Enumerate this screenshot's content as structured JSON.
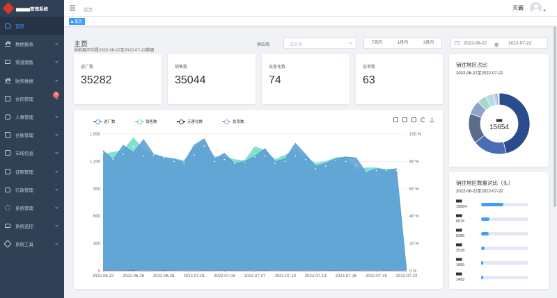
{
  "app": {
    "title": "▅▅▅▅管理系统"
  },
  "sidebar": {
    "items": [
      {
        "label": "首页",
        "icon": "home-icon",
        "active": true
      },
      {
        "label": "数据报表",
        "icon": "bar-chart-icon"
      },
      {
        "label": "渠道销售",
        "icon": "monitor-icon"
      },
      {
        "label": "财务数据",
        "icon": "bar-chart-icon"
      },
      {
        "label": "合同管理",
        "icon": "document-icon",
        "badge": "3"
      },
      {
        "label": "人事管理",
        "icon": "user-icon"
      },
      {
        "label": "台账管理",
        "icon": "box-icon"
      },
      {
        "label": "市场信息",
        "icon": "document-icon"
      },
      {
        "label": "证照管理",
        "icon": "document-icon"
      },
      {
        "label": "行政管理",
        "icon": "user-icon"
      },
      {
        "label": "系统管理",
        "icon": "gear-icon"
      },
      {
        "label": "系统监控",
        "icon": "monitor-icon"
      },
      {
        "label": "系统工具",
        "icon": "tool-icon"
      }
    ]
  },
  "header": {
    "breadcrumb": "首页",
    "username": "灭霸"
  },
  "tags": {
    "active_tag": "首页"
  },
  "main": {
    "title": "主页",
    "subtitle": "当前展示的是2022-06-22至2022-07-22数据",
    "filter": {
      "label": "供应商:",
      "placeholder": "请选择"
    },
    "range_buttons": [
      "7天内",
      "1月内",
      "3月内"
    ],
    "date_range": {
      "start": "2022-06-22",
      "separator": "至",
      "end": "2022-07-22"
    }
  },
  "stats": [
    {
      "label": "进厂数",
      "value": "35282"
    },
    {
      "label": "销售数",
      "value": "35044"
    },
    {
      "label": "无害化数",
      "value": "74"
    },
    {
      "label": "急宰数",
      "value": "63"
    }
  ],
  "donut": {
    "title": "销往地区占比",
    "subtitle": "2022-06-22至2022-07-22",
    "center_label": "▅▅",
    "center_value": "15654",
    "colors": [
      "#2b4c8c",
      "#4a6eb5",
      "#5a6b8c",
      "#8ea3c9",
      "#a8d8c8",
      "#b6dce9",
      "#c9b8e0",
      "#4b72c4",
      "#2d9cdb",
      "#6bd4c2"
    ]
  },
  "region_bars": {
    "title": "销往地区数量对比（头）",
    "subtitle": "2022-06-22至2022-07-22",
    "items": [
      {
        "name": "▅▅",
        "value": "15654",
        "fraction": 0.47
      },
      {
        "name": "▅▅",
        "value": "6076",
        "fraction": 0.18
      },
      {
        "name": "▅▅",
        "value": "5396",
        "fraction": 0.16
      },
      {
        "name": "▅▅",
        "value": "2518",
        "fraction": 0.08
      },
      {
        "name": "▅▅",
        "value": "1659",
        "fraction": 0.05
      },
      {
        "name": "▅▅",
        "value": "1493",
        "fraction": 0.045
      }
    ]
  },
  "chart_data": {
    "type": "area",
    "x": [
      "2022-06-22",
      "2022-06-23",
      "2022-06-24",
      "2022-06-25",
      "2022-06-26",
      "2022-06-27",
      "2022-06-28",
      "2022-06-29",
      "2022-06-30",
      "2022-07-01",
      "2022-07-02",
      "2022-07-03",
      "2022-07-04",
      "2022-07-05",
      "2022-07-06",
      "2022-07-07",
      "2022-07-08",
      "2022-07-09",
      "2022-07-10",
      "2022-07-11",
      "2022-07-12",
      "2022-07-13",
      "2022-07-14",
      "2022-07-15",
      "2022-07-16",
      "2022-07-17",
      "2022-07-18",
      "2022-07-19",
      "2022-07-20",
      "2022-07-21",
      "2022-07-22"
    ],
    "x_tick_labels": [
      "2022-06-22",
      "2022-06-25",
      "2022-06-28",
      "2022-07-01",
      "2022-07-04",
      "2022-07-07",
      "2022-07-10",
      "2022-07-13",
      "2022-07-16",
      "2022-07-19",
      "2022-07-22"
    ],
    "series": [
      {
        "name": "进厂数",
        "axis": "left",
        "color": "#5b9bd5",
        "values": [
          1320,
          1220,
          1380,
          1300,
          1440,
          1280,
          1240,
          1230,
          1190,
          1380,
          1450,
          1230,
          1290,
          1180,
          1200,
          1260,
          1340,
          1200,
          1230,
          1400,
          1280,
          1150,
          1180,
          1230,
          1250,
          1240,
          1080,
          1120,
          1110,
          1120,
          0
        ]
      },
      {
        "name": "销售数",
        "axis": "left",
        "color": "#6fdcc8",
        "values": [
          1280,
          1300,
          1320,
          1460,
          1330,
          1280,
          1250,
          1230,
          1210,
          1350,
          1420,
          1250,
          1250,
          1220,
          1210,
          1360,
          1320,
          1220,
          1270,
          1330,
          1250,
          1180,
          1200,
          1240,
          1250,
          1110,
          1130,
          1130,
          1110,
          1120,
          0
        ]
      },
      {
        "name": "无害化数",
        "axis": "left",
        "color": "#4a4a4a",
        "values": [
          5,
          3,
          2,
          6,
          1,
          2,
          4,
          3,
          2,
          1,
          3,
          2,
          5,
          2,
          3,
          1,
          4,
          2,
          3,
          2,
          1,
          2,
          3,
          4,
          2,
          3,
          1,
          2,
          3,
          1,
          0
        ]
      },
      {
        "name": "急宰数",
        "axis": "left",
        "color": "#b39ddb",
        "values": [
          2,
          3,
          1,
          2,
          4,
          2,
          1,
          2,
          3,
          2,
          1,
          2,
          3,
          1,
          2,
          2,
          1,
          3,
          2,
          1,
          2,
          3,
          2,
          1,
          2,
          1,
          3,
          2,
          1,
          2,
          0
        ]
      }
    ],
    "dots": [
      1290,
      1220,
      1280,
      1360,
      1260,
      1270,
      1240,
      1200,
      1180,
      1270,
      1370,
      1200,
      1220,
      1180,
      1190,
      1250,
      1260,
      1180,
      1200,
      1260,
      1220,
      1120,
      1150,
      1210,
      1200,
      1160,
      1090,
      1100,
      1100,
      1100,
      0
    ],
    "y_left": {
      "ticks": [
        "0",
        "300",
        "600",
        "900",
        "1,200",
        "1,500"
      ],
      "range": [
        0,
        1500
      ]
    },
    "y_right": {
      "ticks": [
        "0 %",
        "20 %",
        "40 %",
        "60 %",
        "80 %",
        "100 %"
      ]
    },
    "grid": true,
    "legend": "top-left"
  }
}
